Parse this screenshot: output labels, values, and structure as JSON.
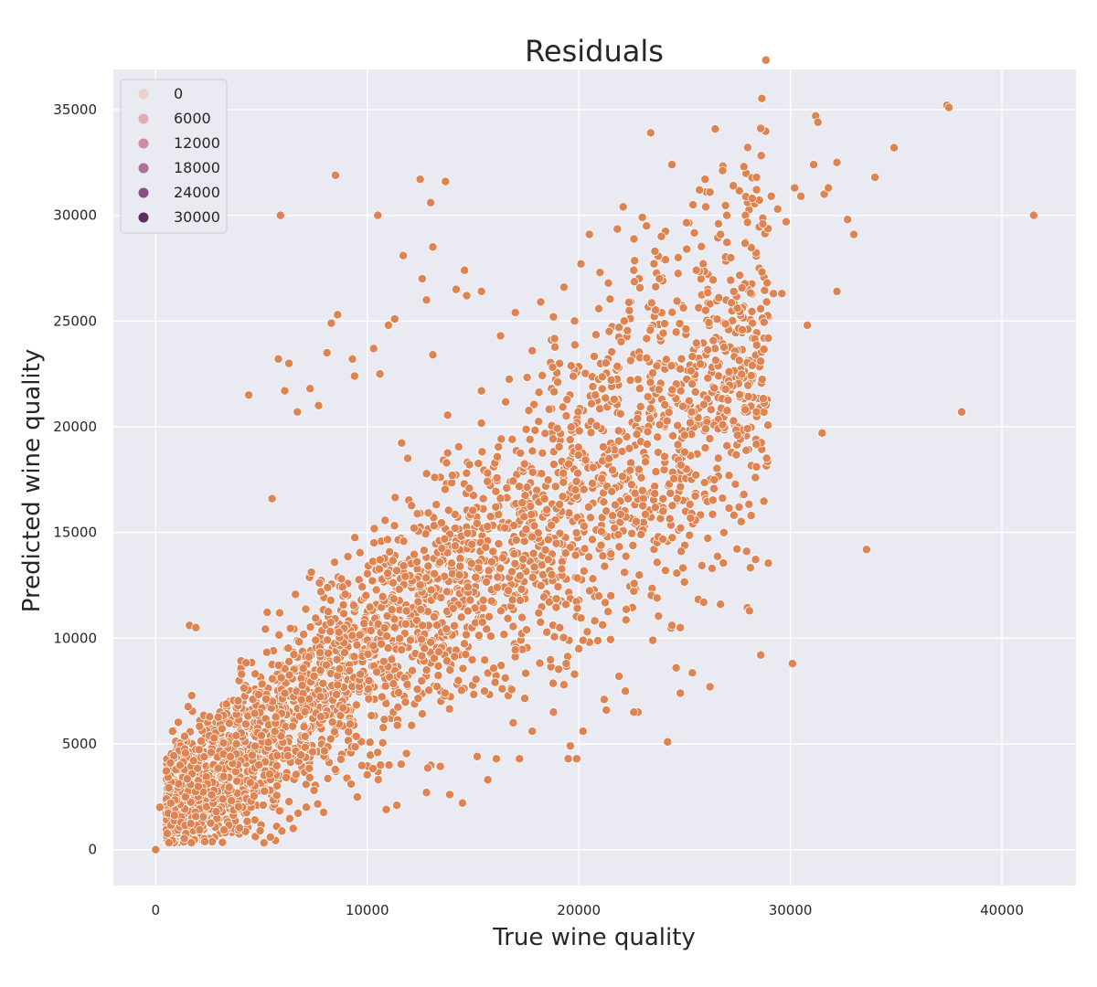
{
  "chart_data": {
    "type": "scatter",
    "title": "Residuals",
    "xlabel": "True wine quality",
    "ylabel": "Predicted wine quality",
    "xlim": [
      -2000,
      43500
    ],
    "ylim": [
      -1700,
      36900
    ],
    "x_ticks": [
      0,
      10000,
      20000,
      30000,
      40000
    ],
    "y_ticks": [
      0,
      5000,
      10000,
      15000,
      20000,
      25000,
      30000,
      35000
    ],
    "grid": true,
    "point_color": "#dd8452",
    "background_color": "#eaeaf2",
    "legend": {
      "placement": "top-left",
      "entries": [
        {
          "label": "0",
          "color": "#ecd0cc"
        },
        {
          "label": "6000",
          "color": "#e3adb0"
        },
        {
          "label": "12000",
          "color": "#cf8da2"
        },
        {
          "label": "18000",
          "color": "#ae6f96"
        },
        {
          "label": "24000",
          "color": "#8b4d86"
        },
        {
          "label": "30000",
          "color": "#5c2e63"
        }
      ]
    },
    "dense_cloud": {
      "n_points": 6500,
      "x_range": [
        500,
        29000
      ],
      "y_mean_formula": "y = 0.8 * x + 1200",
      "y_spread": 3200
    },
    "points": [
      [
        0,
        0
      ],
      [
        200,
        2000
      ],
      [
        700,
        4100
      ],
      [
        800,
        5600
      ],
      [
        1600,
        10600
      ],
      [
        1900,
        10500
      ],
      [
        4400,
        21500
      ],
      [
        5500,
        16600
      ],
      [
        5800,
        23200
      ],
      [
        6100,
        21700
      ],
      [
        6300,
        23000
      ],
      [
        5900,
        30000
      ],
      [
        6700,
        20700
      ],
      [
        7300,
        21800
      ],
      [
        7700,
        21000
      ],
      [
        8100,
        23500
      ],
      [
        8300,
        24900
      ],
      [
        8500,
        31900
      ],
      [
        8600,
        25300
      ],
      [
        9300,
        23200
      ],
      [
        9400,
        22400
      ],
      [
        10300,
        23700
      ],
      [
        10500,
        30000
      ],
      [
        10600,
        22500
      ],
      [
        11000,
        24800
      ],
      [
        11300,
        25100
      ],
      [
        11700,
        28100
      ],
      [
        12500,
        31700
      ],
      [
        12600,
        27000
      ],
      [
        12800,
        26000
      ],
      [
        13000,
        30600
      ],
      [
        13100,
        28500
      ],
      [
        13100,
        23400
      ],
      [
        13700,
        31600
      ],
      [
        14200,
        26500
      ],
      [
        14600,
        27400
      ],
      [
        14700,
        26200
      ],
      [
        15400,
        26400
      ],
      [
        16300,
        24300
      ],
      [
        17000,
        25400
      ],
      [
        17800,
        23600
      ],
      [
        18200,
        25900
      ],
      [
        18800,
        25200
      ],
      [
        19300,
        26600
      ],
      [
        19800,
        25000
      ],
      [
        20100,
        27700
      ],
      [
        20500,
        29100
      ],
      [
        21000,
        27300
      ],
      [
        21400,
        26800
      ],
      [
        21900,
        24700
      ],
      [
        22100,
        30400
      ],
      [
        22600,
        27400
      ],
      [
        23000,
        29900
      ],
      [
        23200,
        29500
      ],
      [
        23400,
        33900
      ],
      [
        23600,
        28300
      ],
      [
        23900,
        29000
      ],
      [
        24100,
        27900
      ],
      [
        24400,
        32400
      ],
      [
        24700,
        28000
      ],
      [
        25100,
        28400
      ],
      [
        25400,
        30500
      ],
      [
        25700,
        31200
      ],
      [
        26000,
        30400
      ],
      [
        26200,
        31100
      ],
      [
        26700,
        29100
      ],
      [
        27000,
        30000
      ],
      [
        27300,
        31400
      ],
      [
        27800,
        32300
      ],
      [
        28200,
        30800
      ],
      [
        28400,
        31800
      ],
      [
        28700,
        29600
      ],
      [
        29100,
        30900
      ],
      [
        29400,
        30300
      ],
      [
        29800,
        29700
      ],
      [
        30200,
        31300
      ],
      [
        30500,
        30900
      ],
      [
        31100,
        32400
      ],
      [
        31200,
        34700
      ],
      [
        31300,
        34400
      ],
      [
        31600,
        31000
      ],
      [
        31800,
        31300
      ],
      [
        32200,
        32500
      ],
      [
        32700,
        29800
      ],
      [
        33000,
        29100
      ],
      [
        34000,
        31800
      ],
      [
        34900,
        33200
      ],
      [
        37400,
        35200
      ],
      [
        37500,
        35100
      ],
      [
        41500,
        30000
      ],
      [
        38100,
        20700
      ],
      [
        31500,
        19700
      ],
      [
        30800,
        24800
      ],
      [
        32200,
        26400
      ],
      [
        33600,
        14200
      ],
      [
        30100,
        8800
      ],
      [
        28600,
        9200
      ],
      [
        26700,
        11600
      ],
      [
        26200,
        7700
      ],
      [
        26300,
        13300
      ],
      [
        25900,
        11700
      ],
      [
        24800,
        7400
      ],
      [
        24600,
        8600
      ],
      [
        24400,
        10600
      ],
      [
        24800,
        10500
      ],
      [
        24200,
        5100
      ],
      [
        23700,
        11900
      ],
      [
        23500,
        9900
      ],
      [
        22800,
        6500
      ],
      [
        22600,
        6500
      ],
      [
        22200,
        7500
      ],
      [
        21900,
        8200
      ],
      [
        21200,
        7100
      ],
      [
        21300,
        6600
      ],
      [
        20400,
        10300
      ],
      [
        20200,
        9900
      ],
      [
        20000,
        9500
      ],
      [
        19400,
        8800
      ],
      [
        19100,
        10500
      ],
      [
        19300,
        7800
      ],
      [
        19800,
        8300
      ],
      [
        20200,
        5600
      ],
      [
        19600,
        4900
      ],
      [
        19500,
        4300
      ],
      [
        19900,
        4300
      ],
      [
        18800,
        6500
      ],
      [
        17800,
        5600
      ],
      [
        16900,
        6000
      ],
      [
        16100,
        4300
      ],
      [
        17200,
        4300
      ],
      [
        15700,
        3300
      ],
      [
        14500,
        2200
      ],
      [
        13900,
        2600
      ],
      [
        12800,
        2700
      ],
      [
        11400,
        2100
      ],
      [
        10900,
        1900
      ],
      [
        6500,
        1000
      ],
      [
        24100,
        13200
      ],
      [
        27100,
        17700
      ],
      [
        28400,
        18100
      ],
      [
        28400,
        20700
      ],
      [
        27500,
        19600
      ],
      [
        26800,
        20100
      ],
      [
        26000,
        19900
      ],
      [
        25000,
        18800
      ],
      [
        25000,
        19600
      ],
      [
        26100,
        22300
      ],
      [
        27100,
        22600
      ],
      [
        28200,
        22900
      ],
      [
        28600,
        23100
      ],
      [
        29200,
        26300
      ],
      [
        29600,
        26300
      ]
    ]
  }
}
